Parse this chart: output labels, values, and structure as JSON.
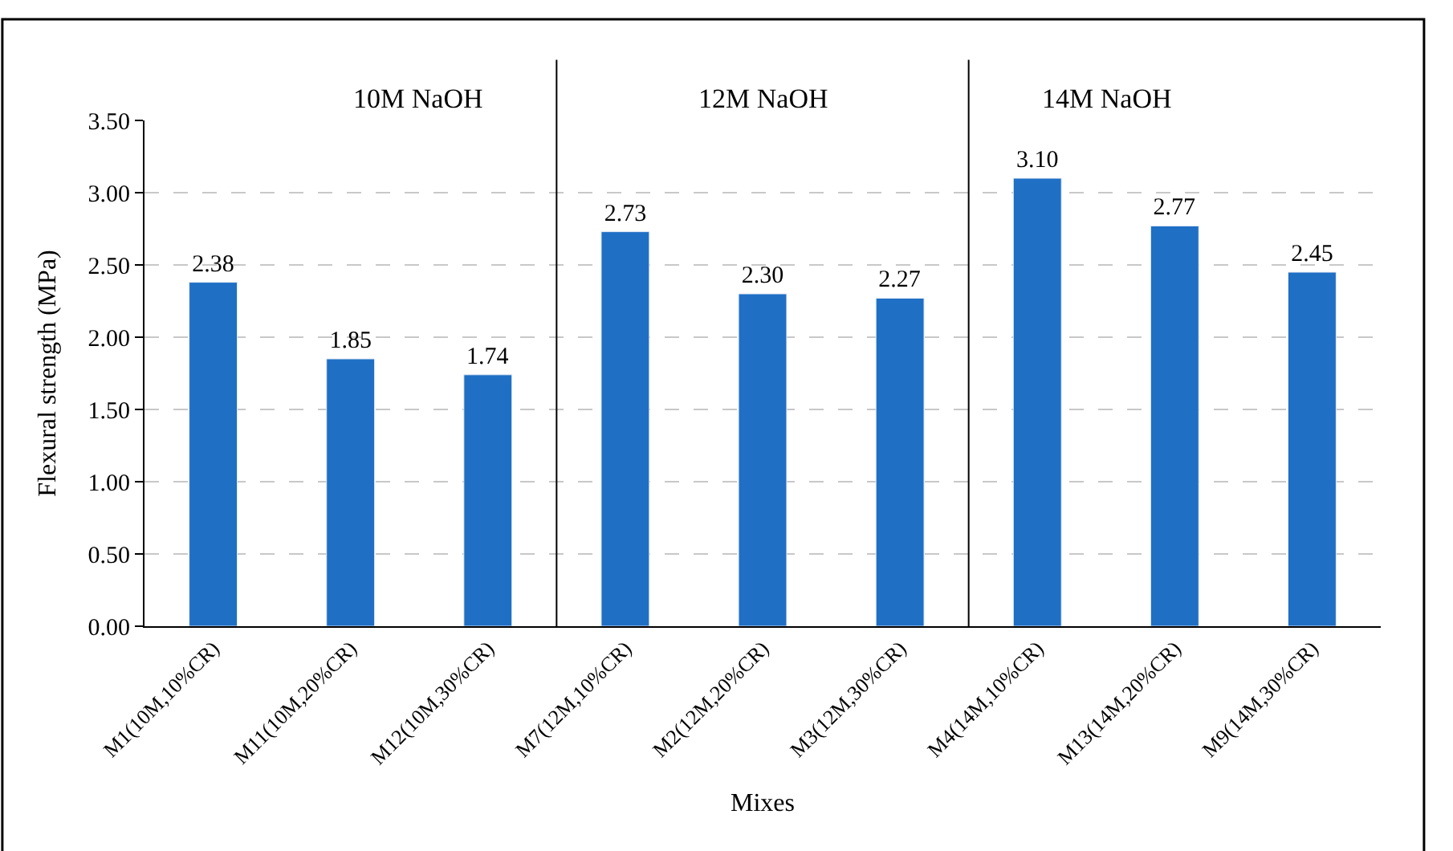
{
  "chart_data": {
    "type": "bar",
    "xlabel": "Mixes",
    "ylabel": "Flexural strength (MPa)",
    "categories": [
      "M1(10M,10%CR)",
      "M11(10M,20%CR)",
      "M12(10M,30%CR)",
      "M7(12M,10%CR)",
      "M2(12M,20%CR)",
      "M3(12M,30%CR)",
      "M4(14M,10%CR)",
      "M13(14M,20%CR)",
      "M9(14M,30%CR)"
    ],
    "values": [
      2.38,
      1.85,
      1.74,
      2.73,
      2.3,
      2.27,
      3.1,
      2.77,
      2.45
    ],
    "value_labels": [
      "2.38",
      "1.85",
      "1.74",
      "2.73",
      "2.30",
      "2.27",
      "3.10",
      "2.77",
      "2.45"
    ],
    "color": "#1f6fc5",
    "ylim": [
      0,
      3.5
    ],
    "yticks": [
      {
        "value": 0,
        "label": "0.00"
      },
      {
        "value": 0.5,
        "label": "0.50"
      },
      {
        "value": 1,
        "label": "1.00"
      },
      {
        "value": 1.5,
        "label": "1.50"
      },
      {
        "value": 2,
        "label": "2.00"
      },
      {
        "value": 2.5,
        "label": "2.50"
      },
      {
        "value": 3,
        "label": "3.00"
      },
      {
        "value": 3.5,
        "label": "3.50"
      }
    ],
    "grid": "y",
    "annotations": [
      "10M NaOH",
      "12M NaOH",
      "14M NaOH"
    ]
  }
}
